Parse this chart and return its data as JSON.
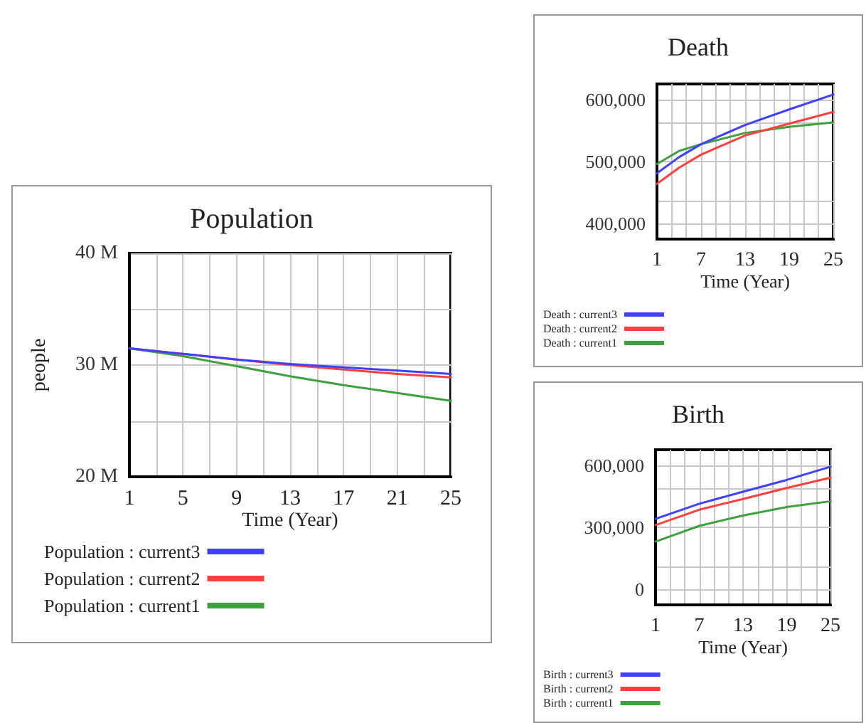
{
  "chart_data": [
    {
      "type": "line",
      "title": "Population",
      "xlabel": "Time (Year)",
      "ylabel": "people",
      "xlim": [
        1,
        25
      ],
      "xticks": [
        1,
        {
          "value": 3,
          "label": null
        },
        5,
        {
          "value": 7,
          "label": null
        },
        9,
        {
          "value": 11,
          "label": null
        },
        13,
        {
          "value": 15,
          "label": null
        },
        17,
        {
          "value": 19,
          "label": null
        },
        21,
        {
          "value": 23,
          "label": null
        },
        25
      ],
      "ylim": [
        20000000,
        40000000
      ],
      "yticks": [
        {
          "value": 20000000,
          "label": "20 M"
        },
        {
          "value": 25000000,
          "label": null
        },
        {
          "value": 30000000,
          "label": "30 M"
        },
        {
          "value": 35000000,
          "label": null
        },
        {
          "value": 40000000,
          "label": "40 M"
        }
      ],
      "grid": true,
      "legend": "bottom",
      "marker": "none",
      "line_style": "solid",
      "series": [
        {
          "name": "Population : current3",
          "color": "#4040ff",
          "x": [
            1,
            5,
            9,
            13,
            17,
            21,
            25
          ],
          "values": [
            31500000,
            31000000,
            30500000,
            30100000,
            29800000,
            29500000,
            29200000
          ]
        },
        {
          "name": "Population : current2",
          "color": "#ff4040",
          "x": [
            1,
            5,
            9,
            13,
            17,
            21,
            25
          ],
          "values": [
            31500000,
            31000000,
            30500000,
            30000000,
            29600000,
            29200000,
            28900000
          ]
        },
        {
          "name": "Population : current1",
          "color": "#40a040",
          "x": [
            1,
            5,
            9,
            13,
            17,
            21,
            25
          ],
          "values": [
            31500000,
            30800000,
            29900000,
            29000000,
            28200000,
            27500000,
            26800000
          ]
        }
      ]
    },
    {
      "type": "line",
      "title": "Death",
      "xlabel": "Time (Year)",
      "xlim": [
        1,
        25
      ],
      "xticks": [
        1,
        {
          "value": 3,
          "label": null
        },
        {
          "value": 5,
          "label": null
        },
        7,
        {
          "value": 9,
          "label": null
        },
        {
          "value": 11,
          "label": null
        },
        13,
        {
          "value": 15,
          "label": null
        },
        {
          "value": 17,
          "label": null
        },
        19,
        {
          "value": 21,
          "label": null
        },
        {
          "value": 23,
          "label": null
        },
        25
      ],
      "ylim": [
        375000,
        625000
      ],
      "yticks": [
        {
          "value": 400000,
          "label": "400,000"
        },
        {
          "value": 437500,
          "label": null
        },
        {
          "value": 500000,
          "label": "500,000"
        },
        {
          "value": 562500,
          "label": null
        },
        {
          "value": 600000,
          "label": "600,000"
        }
      ],
      "grid": true,
      "legend": "bottom",
      "marker": "none",
      "line_style": "solid",
      "series": [
        {
          "name": "Death : current3",
          "color": "#4040ff",
          "x": [
            1,
            4,
            7,
            13,
            19,
            25
          ],
          "values": [
            481000,
            507000,
            528000,
            559000,
            584000,
            608000
          ]
        },
        {
          "name": "Death : current2",
          "color": "#ff4040",
          "x": [
            1,
            4,
            7,
            13,
            19,
            25
          ],
          "values": [
            464000,
            490000,
            511000,
            542000,
            561000,
            580000
          ]
        },
        {
          "name": "Death : current1",
          "color": "#40a040",
          "x": [
            1,
            4,
            7,
            13,
            19,
            25
          ],
          "values": [
            496000,
            517000,
            528000,
            546000,
            556000,
            563000
          ]
        }
      ]
    },
    {
      "type": "line",
      "title": "Birth",
      "xlabel": "Time (Year)",
      "xlim": [
        1,
        25
      ],
      "xticks": [
        1,
        {
          "value": 3,
          "label": null
        },
        {
          "value": 5,
          "label": null
        },
        7,
        {
          "value": 9,
          "label": null
        },
        {
          "value": 11,
          "label": null
        },
        13,
        {
          "value": 15,
          "label": null
        },
        {
          "value": 17,
          "label": null
        },
        19,
        {
          "value": 21,
          "label": null
        },
        {
          "value": 23,
          "label": null
        },
        25
      ],
      "ylim": [
        -75000,
        675000
      ],
      "yticks": [
        {
          "value": 0,
          "label": "0"
        },
        {
          "value": 112500,
          "label": null
        },
        {
          "value": 300000,
          "label": "300,000"
        },
        {
          "value": 487500,
          "label": null
        },
        {
          "value": 600000,
          "label": "600,000"
        }
      ],
      "grid": true,
      "legend": "bottom",
      "marker": "none",
      "line_style": "solid",
      "series": [
        {
          "name": "Birth : current3",
          "color": "#4040ff",
          "x": [
            1,
            7,
            13,
            19,
            25
          ],
          "values": [
            341000,
            414000,
            472000,
            529000,
            593000
          ]
        },
        {
          "name": "Birth : current2",
          "color": "#ff4040",
          "x": [
            1,
            7,
            13,
            19,
            25
          ],
          "values": [
            311000,
            385000,
            437000,
            490000,
            540000
          ]
        },
        {
          "name": "Birth : current1",
          "color": "#40a040",
          "x": [
            1,
            7,
            13,
            19,
            25
          ],
          "values": [
            231000,
            307000,
            357000,
            398000,
            426000
          ]
        }
      ]
    }
  ]
}
